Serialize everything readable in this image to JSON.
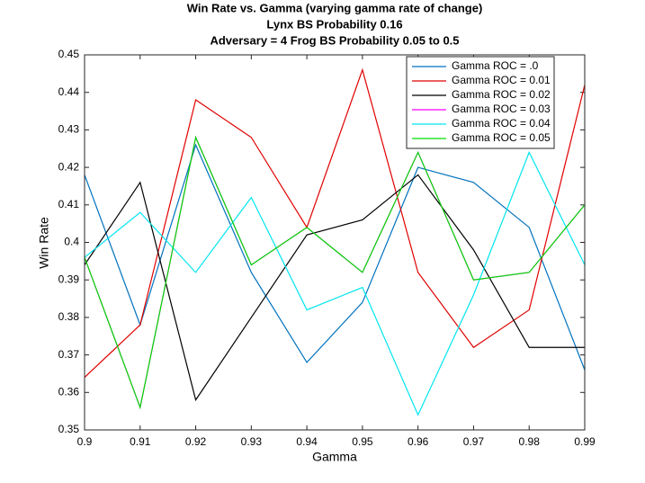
{
  "chart_data": {
    "type": "line",
    "title": [
      "Win Rate vs. Gamma (varying gamma rate of change)",
      "Lynx BS Probability 0.16",
      "Adversary = 4 Frog BS Probability 0.05 to 0.5"
    ],
    "xlabel": "Gamma",
    "ylabel": "Win Rate",
    "x": [
      0.9,
      0.91,
      0.92,
      0.93,
      0.94,
      0.95,
      0.96,
      0.97,
      0.98,
      0.99
    ],
    "series": [
      {
        "name": "Gamma ROC = .0",
        "color": "#0072bd",
        "values": [
          0.418,
          0.378,
          0.426,
          0.392,
          0.368,
          0.384,
          0.42,
          0.416,
          0.404,
          0.366
        ]
      },
      {
        "name": "Gamma ROC = 0.01",
        "color": "#e00000",
        "values": [
          0.364,
          0.378,
          0.438,
          0.428,
          0.404,
          0.446,
          0.392,
          0.372,
          0.382,
          0.442
        ]
      },
      {
        "name": "Gamma ROC = 0.02",
        "color": "#000000",
        "values": [
          0.394,
          0.416,
          0.358,
          0.38,
          0.402,
          0.406,
          0.418,
          0.398,
          0.372,
          0.372
        ]
      },
      {
        "name": "Gamma ROC = 0.03",
        "color": "#ff00ff",
        "values": [
          0.396,
          0.356,
          0.428,
          0.394,
          0.404,
          0.392,
          0.424,
          0.39,
          0.392,
          0.41
        ]
      },
      {
        "name": "Gamma ROC = 0.04",
        "color": "#00e5ee",
        "values": [
          0.396,
          0.408,
          0.392,
          0.412,
          0.382,
          0.388,
          0.354,
          0.386,
          0.424,
          0.394
        ]
      },
      {
        "name": "Gamma ROC = 0.05",
        "color": "#00dd00",
        "values": [
          0.396,
          0.356,
          0.428,
          0.394,
          0.404,
          0.392,
          0.424,
          0.39,
          0.392,
          0.41
        ]
      }
    ],
    "xlim": [
      0.9,
      0.99
    ],
    "xticks": [
      0.9,
      0.91,
      0.92,
      0.93,
      0.94,
      0.95,
      0.96,
      0.97,
      0.98,
      0.99
    ],
    "ylim": [
      0.35,
      0.45
    ],
    "yticks": [
      0.35,
      0.36,
      0.37,
      0.38,
      0.39,
      0.4,
      0.41,
      0.42,
      0.43,
      0.44,
      0.45
    ],
    "legend": "northeast"
  }
}
